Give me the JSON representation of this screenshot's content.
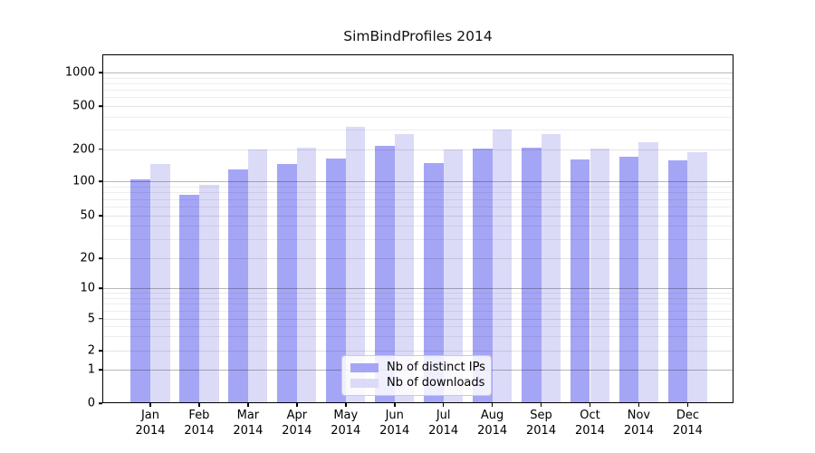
{
  "title": "SimBindProfiles 2014",
  "chart_data": {
    "type": "bar",
    "title": "SimBindProfiles 2014",
    "x_categories": [
      "Jan",
      "Feb",
      "Mar",
      "Apr",
      "May",
      "Jun",
      "Jul",
      "Aug",
      "Sep",
      "Oct",
      "Nov",
      "Dec"
    ],
    "x_year_label": "2014",
    "yscale": "symlog",
    "y_ticks": [
      0,
      1,
      2,
      5,
      10,
      20,
      50,
      100,
      200,
      500,
      1000
    ],
    "ylim": [
      0,
      1470
    ],
    "grid": true,
    "legend_position": "inside-bottom-center",
    "series": [
      {
        "name": "Nb of distinct IPs",
        "color": "#a5a5f6",
        "values": [
          105,
          76,
          130,
          145,
          164,
          213,
          148,
          203,
          205,
          161,
          171,
          156
        ]
      },
      {
        "name": "Nb of downloads",
        "color": "#dbdbf8",
        "values": [
          146,
          93,
          199,
          205,
          318,
          275,
          199,
          300,
          275,
          202,
          232,
          187
        ]
      }
    ]
  }
}
